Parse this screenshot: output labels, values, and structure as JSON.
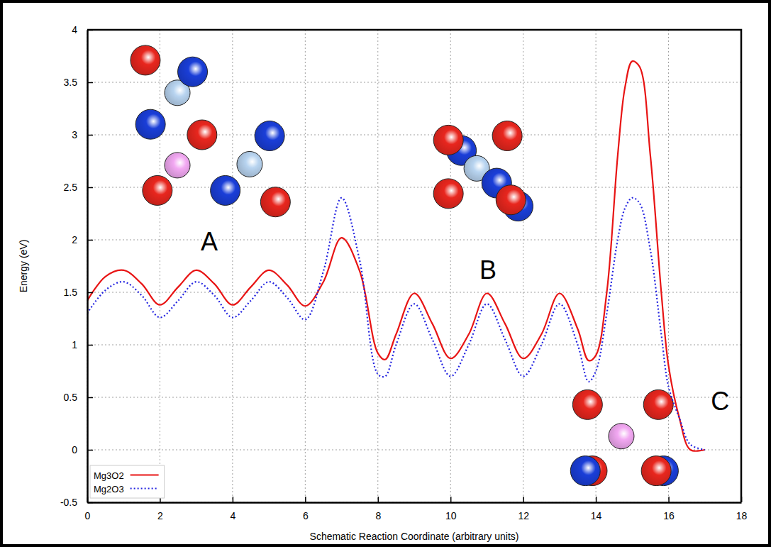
{
  "chart_data": {
    "type": "line",
    "x_label": "Schematic Reaction Coordinate (arbitrary units)",
    "y_label": "Energy (eV)",
    "x": [
      0,
      0.5,
      1,
      1.5,
      2,
      2.5,
      3,
      3.5,
      4,
      4.5,
      5,
      5.5,
      6,
      6.5,
      7,
      7.5,
      8,
      8.2,
      8.5,
      9,
      9.5,
      10,
      10.5,
      11,
      11.5,
      12,
      12.5,
      13,
      13.5,
      13.8,
      14,
      14.3,
      14.6,
      14.8,
      15,
      15.2,
      15.5,
      15.8,
      16,
      16.3,
      16.6,
      17
    ],
    "series": [
      {
        "name": "Mg3O2",
        "color": "#e81414",
        "line_style": "solid",
        "values": [
          1.42,
          1.65,
          1.71,
          1.58,
          1.38,
          1.55,
          1.71,
          1.58,
          1.38,
          1.55,
          1.71,
          1.57,
          1.37,
          1.6,
          2.02,
          1.7,
          0.92,
          0.86,
          1.1,
          1.49,
          1.2,
          0.87,
          1.1,
          1.49,
          1.2,
          0.87,
          1.1,
          1.49,
          1.15,
          0.85,
          0.9,
          1.5,
          2.8,
          3.45,
          3.7,
          3.65,
          2.8,
          1.5,
          0.8,
          0.3,
          0.0,
          0.0
        ]
      },
      {
        "name": "Mg2O3",
        "color": "#2424e0",
        "line_style": "dotted",
        "values": [
          1.3,
          1.52,
          1.6,
          1.47,
          1.26,
          1.42,
          1.6,
          1.47,
          1.26,
          1.42,
          1.6,
          1.45,
          1.24,
          1.7,
          2.4,
          1.8,
          0.72,
          0.7,
          1.0,
          1.39,
          1.05,
          0.7,
          1.0,
          1.39,
          1.05,
          0.7,
          1.0,
          1.39,
          1.0,
          0.65,
          0.75,
          1.3,
          2.0,
          2.3,
          2.4,
          2.35,
          1.9,
          1.1,
          0.6,
          0.3,
          0.05,
          0.0
        ]
      }
    ],
    "xlim": [
      0,
      18
    ],
    "ylim": [
      -0.5,
      4
    ],
    "xticks": [
      0,
      2,
      4,
      6,
      8,
      10,
      12,
      14,
      16,
      18
    ],
    "yticks": [
      -0.5,
      0,
      0.5,
      1,
      1.5,
      2,
      2.5,
      3,
      3.5,
      4
    ],
    "grid": true,
    "legend": "lower left",
    "annotations": [
      "A",
      "B",
      "C"
    ]
  }
}
